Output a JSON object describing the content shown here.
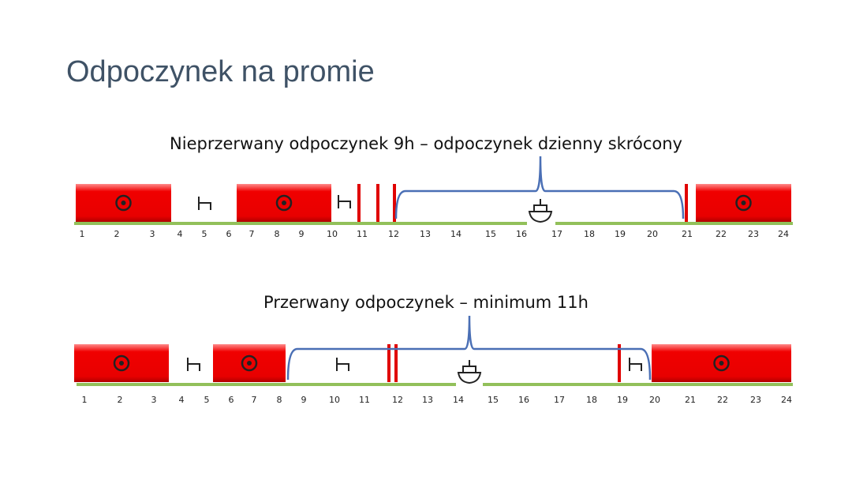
{
  "title": "Odpoczynek na promie",
  "timelines": [
    {
      "subtitle": "Nieprzerwany odpoczynek 9h – odpoczynek dzienny skrócony",
      "hours": [
        1,
        2,
        3,
        4,
        5,
        6,
        7,
        8,
        9,
        10,
        11,
        12,
        13,
        14,
        15,
        16,
        17,
        18,
        19,
        20,
        21,
        22,
        23,
        24
      ]
    },
    {
      "subtitle": "Przerwany odpoczynek – minimum 11h",
      "hours": [
        1,
        2,
        3,
        4,
        5,
        6,
        7,
        8,
        9,
        10,
        11,
        12,
        13,
        14,
        15,
        16,
        17,
        18,
        19,
        20,
        21,
        22,
        23,
        24
      ]
    }
  ]
}
